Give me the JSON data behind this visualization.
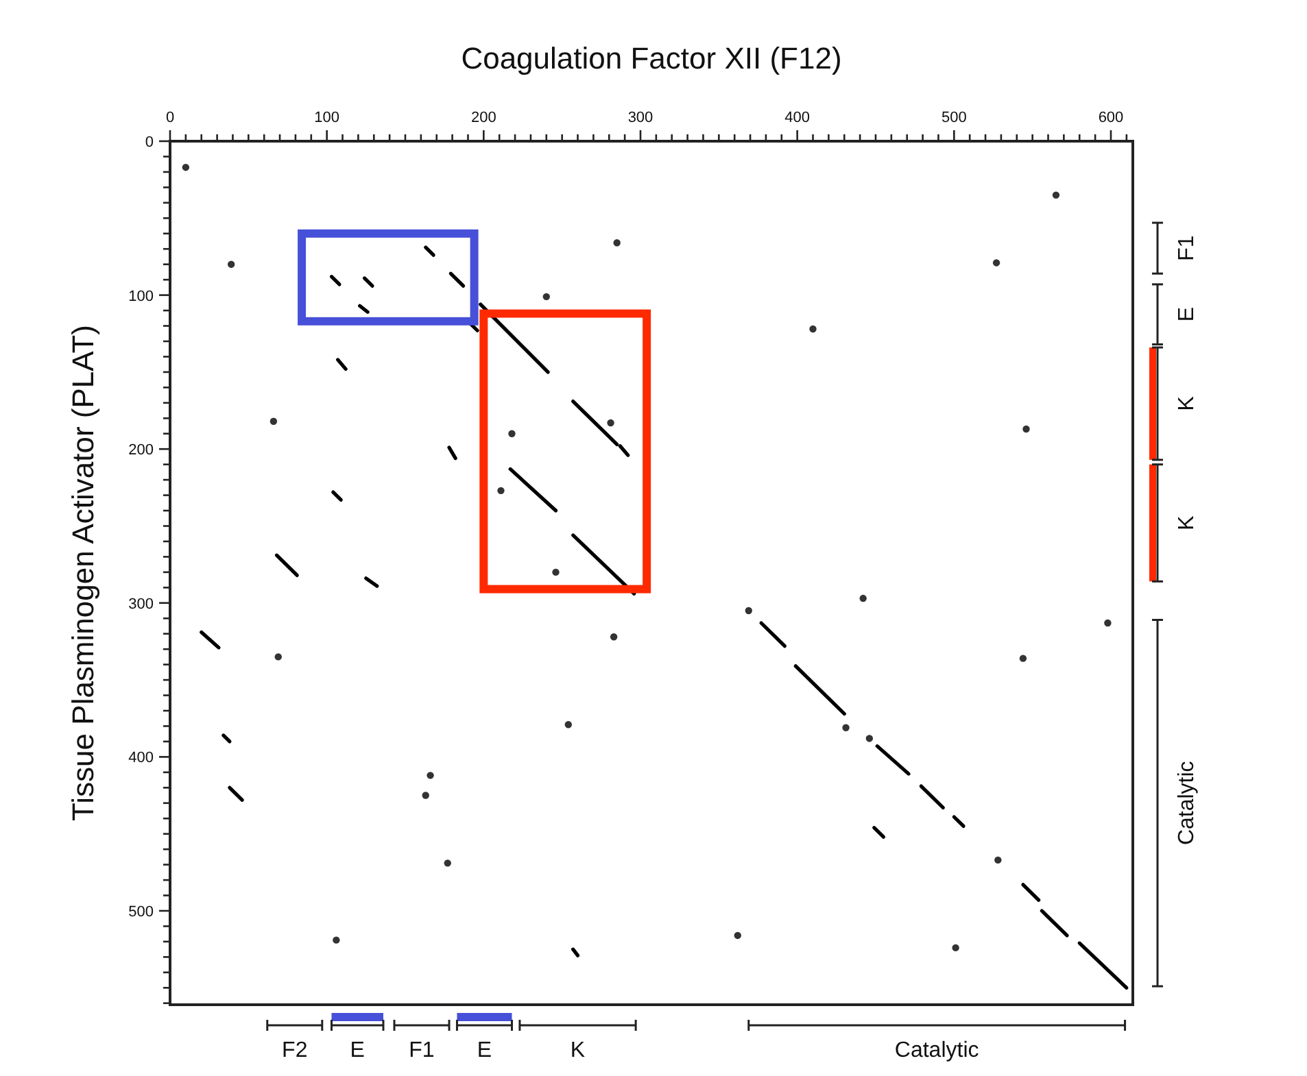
{
  "chart_data": {
    "type": "line",
    "title": "Coagulation Factor XII  (F12)",
    "ylabel": "Tissue Plasminogen Activator (PLAT)",
    "xlim": [
      0,
      614
    ],
    "ylim": [
      561,
      0
    ],
    "xticks": [
      0,
      {
        "value": 10,
        "label": null
      },
      {
        "value": 20,
        "label": null
      },
      {
        "value": 30,
        "label": null
      },
      {
        "value": 40,
        "label": null
      },
      {
        "value": 50,
        "label": null
      },
      {
        "value": 60,
        "label": null
      },
      {
        "value": 70,
        "label": null
      },
      {
        "value": 80,
        "label": null
      },
      {
        "value": 90,
        "label": null
      },
      100,
      {
        "value": 110,
        "label": null
      },
      {
        "value": 120,
        "label": null
      },
      {
        "value": 130,
        "label": null
      },
      {
        "value": 140,
        "label": null
      },
      {
        "value": 150,
        "label": null
      },
      {
        "value": 160,
        "label": null
      },
      {
        "value": 170,
        "label": null
      },
      {
        "value": 180,
        "label": null
      },
      {
        "value": 190,
        "label": null
      },
      200,
      {
        "value": 210,
        "label": null
      },
      {
        "value": 220,
        "label": null
      },
      {
        "value": 230,
        "label": null
      },
      {
        "value": 240,
        "label": null
      },
      {
        "value": 250,
        "label": null
      },
      {
        "value": 260,
        "label": null
      },
      {
        "value": 270,
        "label": null
      },
      {
        "value": 280,
        "label": null
      },
      {
        "value": 290,
        "label": null
      },
      300,
      {
        "value": 310,
        "label": null
      },
      {
        "value": 320,
        "label": null
      },
      {
        "value": 330,
        "label": null
      },
      {
        "value": 340,
        "label": null
      },
      {
        "value": 350,
        "label": null
      },
      {
        "value": 360,
        "label": null
      },
      {
        "value": 370,
        "label": null
      },
      {
        "value": 380,
        "label": null
      },
      {
        "value": 390,
        "label": null
      },
      400,
      {
        "value": 410,
        "label": null
      },
      {
        "value": 420,
        "label": null
      },
      {
        "value": 430,
        "label": null
      },
      {
        "value": 440,
        "label": null
      },
      {
        "value": 450,
        "label": null
      },
      {
        "value": 460,
        "label": null
      },
      {
        "value": 470,
        "label": null
      },
      {
        "value": 480,
        "label": null
      },
      {
        "value": 490,
        "label": null
      },
      500,
      {
        "value": 510,
        "label": null
      },
      {
        "value": 520,
        "label": null
      },
      {
        "value": 530,
        "label": null
      },
      {
        "value": 540,
        "label": null
      },
      {
        "value": 550,
        "label": null
      },
      {
        "value": 560,
        "label": null
      },
      {
        "value": 570,
        "label": null
      },
      {
        "value": 580,
        "label": null
      },
      {
        "value": 590,
        "label": null
      },
      600,
      {
        "value": 610,
        "label": null
      }
    ],
    "yticks": [
      0,
      {
        "value": 10,
        "label": null
      },
      {
        "value": 20,
        "label": null
      },
      {
        "value": 30,
        "label": null
      },
      {
        "value": 40,
        "label": null
      },
      {
        "value": 50,
        "label": null
      },
      {
        "value": 60,
        "label": null
      },
      {
        "value": 70,
        "label": null
      },
      {
        "value": 80,
        "label": null
      },
      {
        "value": 90,
        "label": null
      },
      100,
      {
        "value": 110,
        "label": null
      },
      {
        "value": 120,
        "label": null
      },
      {
        "value": 130,
        "label": null
      },
      {
        "value": 140,
        "label": null
      },
      {
        "value": 150,
        "label": null
      },
      {
        "value": 160,
        "label": null
      },
      {
        "value": 170,
        "label": null
      },
      {
        "value": 180,
        "label": null
      },
      {
        "value": 190,
        "label": null
      },
      200,
      {
        "value": 210,
        "label": null
      },
      {
        "value": 220,
        "label": null
      },
      {
        "value": 230,
        "label": null
      },
      {
        "value": 240,
        "label": null
      },
      {
        "value": 250,
        "label": null
      },
      {
        "value": 260,
        "label": null
      },
      {
        "value": 270,
        "label": null
      },
      {
        "value": 280,
        "label": null
      },
      {
        "value": 290,
        "label": null
      },
      300,
      {
        "value": 310,
        "label": null
      },
      {
        "value": 320,
        "label": null
      },
      {
        "value": 330,
        "label": null
      },
      {
        "value": 340,
        "label": null
      },
      {
        "value": 350,
        "label": null
      },
      {
        "value": 360,
        "label": null
      },
      {
        "value": 370,
        "label": null
      },
      {
        "value": 380,
        "label": null
      },
      {
        "value": 390,
        "label": null
      },
      400,
      {
        "value": 410,
        "label": null
      },
      {
        "value": 420,
        "label": null
      },
      {
        "value": 430,
        "label": null
      },
      {
        "value": 440,
        "label": null
      },
      {
        "value": 450,
        "label": null
      },
      {
        "value": 460,
        "label": null
      },
      {
        "value": 470,
        "label": null
      },
      {
        "value": 480,
        "label": null
      },
      {
        "value": 490,
        "label": null
      },
      500,
      {
        "value": 510,
        "label": null
      },
      {
        "value": 520,
        "label": null
      },
      {
        "value": 530,
        "label": null
      },
      {
        "value": 540,
        "label": null
      },
      {
        "value": 550,
        "label": null
      },
      {
        "value": 560,
        "label": null
      }
    ],
    "series": [
      {
        "color": "#000000",
        "x": [
          163,
          168
        ],
        "values": [
          69,
          74
        ]
      },
      {
        "color": "#000000",
        "x": [
          179,
          187
        ],
        "values": [
          86,
          94
        ]
      },
      {
        "color": "#000000",
        "x": [
          103,
          108
        ],
        "values": [
          88,
          93
        ]
      },
      {
        "color": "#000000",
        "x": [
          124,
          129
        ],
        "values": [
          89,
          94
        ]
      },
      {
        "color": "#000000",
        "x": [
          121,
          126
        ],
        "values": [
          107,
          111
        ]
      },
      {
        "color": "#000000",
        "x": [
          189,
          196
        ],
        "values": [
          116,
          123
        ]
      },
      {
        "color": "#000000",
        "x": [
          198,
          241
        ],
        "values": [
          106,
          150
        ]
      },
      {
        "color": "#000000",
        "x": [
          257,
          285
        ],
        "values": [
          169,
          197
        ]
      },
      {
        "color": "#000000",
        "x": [
          287,
          292
        ],
        "values": [
          198,
          204
        ]
      },
      {
        "color": "#000000",
        "x": [
          217,
          246
        ],
        "values": [
          213,
          240
        ]
      },
      {
        "color": "#000000",
        "x": [
          257,
          296
        ],
        "values": [
          256,
          294
        ]
      },
      {
        "color": "#000000",
        "x": [
          107,
          112
        ],
        "values": [
          142,
          148
        ]
      },
      {
        "color": "#000000",
        "x": [
          178,
          182
        ],
        "values": [
          199,
          206
        ]
      },
      {
        "color": "#000000",
        "x": [
          104,
          109
        ],
        "values": [
          228,
          233
        ]
      },
      {
        "color": "#000000",
        "x": [
          68,
          81
        ],
        "values": [
          269,
          282
        ]
      },
      {
        "color": "#000000",
        "x": [
          125,
          132
        ],
        "values": [
          284,
          289
        ]
      },
      {
        "color": "#000000",
        "x": [
          20,
          31
        ],
        "values": [
          319,
          329
        ]
      },
      {
        "color": "#000000",
        "x": [
          34,
          38
        ],
        "values": [
          386,
          390
        ]
      },
      {
        "color": "#000000",
        "x": [
          38,
          46
        ],
        "values": [
          420,
          428
        ]
      },
      {
        "color": "#000000",
        "x": [
          257,
          260
        ],
        "values": [
          525,
          529
        ]
      },
      {
        "color": "#000000",
        "x": [
          377,
          392
        ],
        "values": [
          313,
          328
        ]
      },
      {
        "color": "#000000",
        "x": [
          399,
          430
        ],
        "values": [
          341,
          372
        ]
      },
      {
        "color": "#000000",
        "x": [
          451,
          471
        ],
        "values": [
          393,
          411
        ]
      },
      {
        "color": "#000000",
        "x": [
          479,
          493
        ],
        "values": [
          419,
          433
        ]
      },
      {
        "color": "#000000",
        "x": [
          500,
          506
        ],
        "values": [
          439,
          445
        ]
      },
      {
        "color": "#000000",
        "x": [
          449,
          455
        ],
        "values": [
          446,
          452
        ]
      },
      {
        "color": "#000000",
        "x": [
          544,
          554
        ],
        "values": [
          483,
          493
        ]
      },
      {
        "color": "#000000",
        "x": [
          556,
          572
        ],
        "values": [
          500,
          516
        ]
      },
      {
        "color": "#000000",
        "x": [
          580,
          610
        ],
        "values": [
          521,
          550
        ]
      },
      {
        "type": "scatter",
        "color": "#333333",
        "x": [
          39,
          10,
          66,
          240,
          285,
          281,
          218,
          211,
          246,
          565,
          527,
          410,
          546,
          442,
          69,
          166,
          177,
          106,
          283,
          369,
          431,
          446,
          598,
          544,
          362,
          501,
          163,
          254,
          528
        ],
        "values": [
          80,
          17,
          182,
          101,
          66,
          183,
          190,
          227,
          280,
          35,
          79,
          122,
          187,
          297,
          335,
          412,
          469,
          519,
          322,
          305,
          381,
          388,
          313,
          336,
          516,
          524,
          425,
          379,
          467
        ]
      }
    ],
    "annotations": [
      "F2",
      "E",
      "F1",
      "E",
      "K",
      "Catalytic",
      "F1",
      "E",
      "K",
      "K",
      "Catalytic"
    ]
  }
}
